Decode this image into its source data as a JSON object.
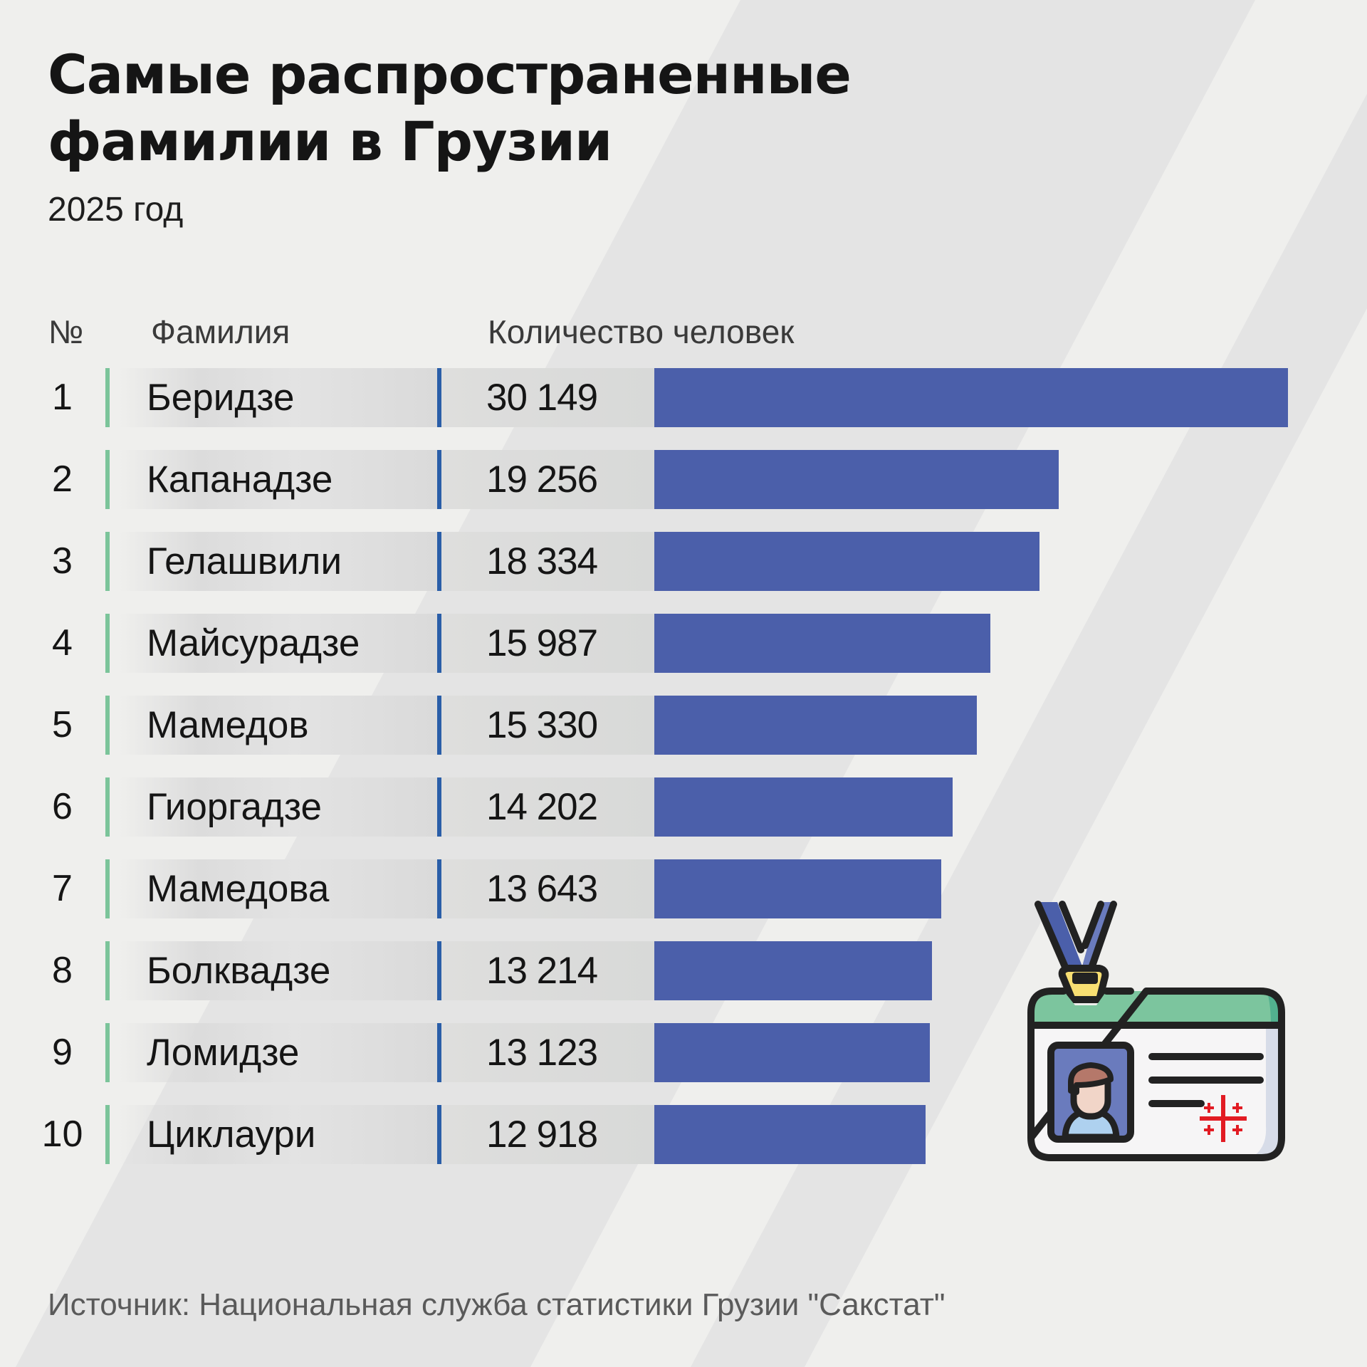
{
  "title": {
    "line1": "Самые распространенные",
    "line2": "фамилии в Грузии"
  },
  "subtitle": "2025 год",
  "headers": {
    "rank": "№",
    "surname": "Фамилия",
    "count": "Количество человек"
  },
  "rows": [
    {
      "rank": "1",
      "surname": "Беридзе",
      "count_label": "30 149",
      "value": 30149
    },
    {
      "rank": "2",
      "surname": "Капанадзе",
      "count_label": "19 256",
      "value": 19256
    },
    {
      "rank": "3",
      "surname": "Гелашвили",
      "count_label": "18 334",
      "value": 18334
    },
    {
      "rank": "4",
      "surname": "Майсурадзе",
      "count_label": "15 987",
      "value": 15987
    },
    {
      "rank": "5",
      "surname": "Мамедов",
      "count_label": "15 330",
      "value": 15330
    },
    {
      "rank": "6",
      "surname": "Гиоргадзе",
      "count_label": "14 202",
      "value": 14202
    },
    {
      "rank": "7",
      "surname": "Мамедова",
      "count_label": "13 643",
      "value": 13643
    },
    {
      "rank": "8",
      "surname": "Болквадзе",
      "count_label": "13 214",
      "value": 13214
    },
    {
      "rank": "9",
      "surname": "Ломидзе",
      "count_label": "13 123",
      "value": 13123
    },
    {
      "rank": "10",
      "surname": "Циклаури",
      "count_label": "12 918",
      "value": 12918
    }
  ],
  "footer": "Источник: Национальная служба статистики Грузии \"Сакстат\"",
  "icon": "id-card-lanyard-icon",
  "colors": {
    "background": "#efefed",
    "stripe": "#e4e4e4",
    "bar": "#4b5faa",
    "rank_divider": "#7bc49a",
    "count_divider": "#2a5ea8",
    "text": "#151515"
  },
  "chart_data": {
    "type": "bar",
    "orientation": "horizontal",
    "title": "Самые распространенные фамилии в Грузии",
    "subtitle": "2025 год",
    "categories": [
      "Беридзе",
      "Капанадзе",
      "Гелашвили",
      "Майсурадзе",
      "Мамедов",
      "Гиоргадзе",
      "Мамедова",
      "Болквадзе",
      "Ломидзе",
      "Циклаури"
    ],
    "values": [
      30149,
      19256,
      18334,
      15987,
      15330,
      14202,
      13643,
      13214,
      13123,
      12918
    ],
    "xlabel": "Количество человек",
    "ylabel": "Фамилия",
    "grid": false,
    "legend": null,
    "source": "Источник: Национальная служба статистики Грузии \"Сакстат\""
  }
}
